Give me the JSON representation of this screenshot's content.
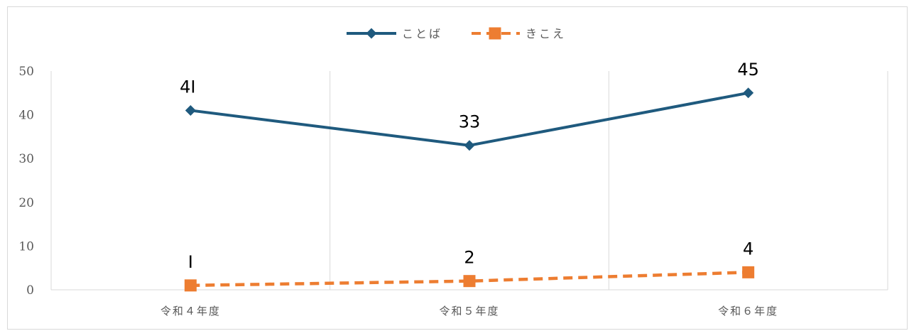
{
  "chart_data": {
    "type": "line",
    "categories": [
      "令和４年度",
      "令和５年度",
      "令和６年度"
    ],
    "ylim": [
      0,
      50
    ],
    "yticks": [
      0,
      10,
      20,
      30,
      40,
      50
    ],
    "grid": "vertical",
    "legend_position": "top",
    "series": [
      {
        "name": "ことば",
        "values": [
          41,
          33,
          45
        ],
        "labels": [
          "4I",
          "33",
          "45"
        ],
        "color": "#1f5a7e",
        "marker": "diamond",
        "line_style": "solid"
      },
      {
        "name": "きこえ",
        "values": [
          1,
          2,
          4
        ],
        "labels": [
          "I",
          "2",
          "4"
        ],
        "color": "#ed7d31",
        "marker": "square",
        "line_style": "dashed"
      }
    ]
  }
}
